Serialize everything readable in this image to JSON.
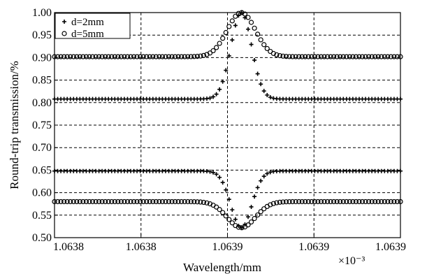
{
  "chart_data": {
    "type": "scatter",
    "title": "",
    "xlabel": "Wavelength/mm",
    "ylabel": "Round-trip transmission/%",
    "x_exponent_label": "×10⁻³",
    "xlim": [
      1.06375,
      1.06395
    ],
    "ylim": [
      0.5,
      1.0
    ],
    "grid": true,
    "legend": "top-left",
    "x_ticks": [
      {
        "value": 1.06375,
        "label": "1.0638"
      },
      {
        "value": 1.0638,
        "label": "1.0638"
      },
      {
        "value": 1.06385,
        "label": "1.0639"
      },
      {
        "value": 1.0639,
        "label": "1.0639"
      },
      {
        "value": 1.06395,
        "label": "1.0639"
      }
    ],
    "y_ticks": [
      {
        "value": 0.5,
        "label": "0.50"
      },
      {
        "value": 0.55,
        "label": "0.55"
      },
      {
        "value": 0.6,
        "label": "0.60"
      },
      {
        "value": 0.65,
        "label": "0.65"
      },
      {
        "value": 0.7,
        "label": "0.70"
      },
      {
        "value": 0.75,
        "label": "0.75"
      },
      {
        "value": 0.8,
        "label": "0.80"
      },
      {
        "value": 0.85,
        "label": "0.85"
      },
      {
        "value": 0.9,
        "label": "0.90"
      },
      {
        "value": 0.95,
        "label": "0.95"
      },
      {
        "value": 1.0,
        "label": "1.00"
      }
    ],
    "center_x": 1.063858,
    "series": [
      {
        "name": "d=2mm",
        "marker": "plus",
        "branches": [
          {
            "baseline": 0.808,
            "peak": 1.0,
            "width": 8.5e-06
          },
          {
            "baseline": 0.648,
            "peak": 0.522,
            "width": 8.5e-06
          }
        ]
      },
      {
        "name": "d=5mm",
        "marker": "circle",
        "branches": [
          {
            "baseline": 0.902,
            "peak": 1.0,
            "width": 1.15e-05
          },
          {
            "baseline": 0.58,
            "peak": 0.522,
            "width": 1.15e-05
          }
        ]
      }
    ],
    "point_count": 110
  }
}
